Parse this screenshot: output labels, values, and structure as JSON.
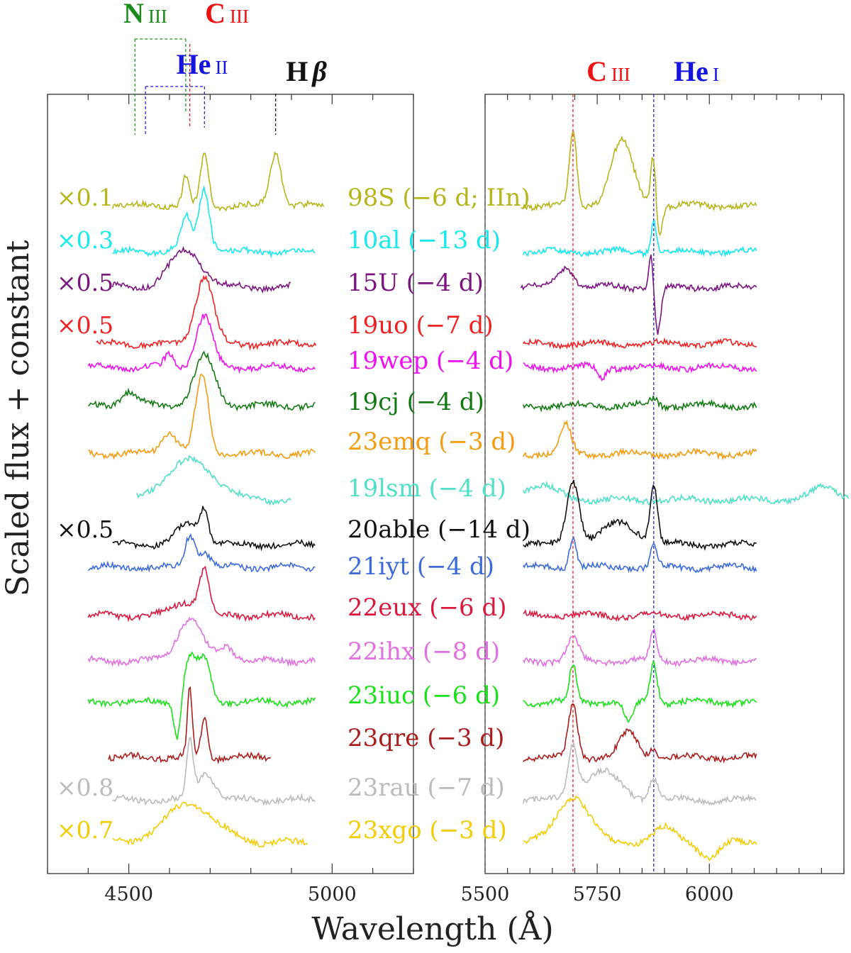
{
  "chart_data": {
    "type": "line",
    "title": "",
    "xlabel": "Wavelength (Å)",
    "ylabel": "Scaled flux + constant",
    "grid": false,
    "panels": [
      {
        "name": "left",
        "xlim": [
          4300,
          5200
        ],
        "xticks": [
          4500,
          5000
        ],
        "xtick_labels": [
          "4500",
          "5000"
        ]
      },
      {
        "name": "right",
        "xlim": [
          5500,
          6300
        ],
        "xticks": [
          5500,
          5750,
          6000
        ],
        "xtick_labels": [
          "5500",
          "5750",
          "6000"
        ]
      }
    ],
    "line_ids": [
      {
        "element": "N",
        "ion": "III",
        "color": "#1a8a1a",
        "wavelengths": [
          4515,
          4640
        ]
      },
      {
        "element": "C",
        "ion": "III",
        "color": "#ee1111",
        "wavelengths": [
          4650,
          5696
        ]
      },
      {
        "element": "He",
        "ion": "II",
        "color": "#1515dd",
        "wavelengths": [
          4541,
          4686
        ]
      },
      {
        "element": "H",
        "ion": "β",
        "color": "#111111",
        "wavelengths": [
          4861
        ]
      },
      {
        "element": "He",
        "ion": "I",
        "color": "#1515dd",
        "wavelengths": [
          5876
        ]
      }
    ],
    "series": [
      {
        "name": "98S",
        "label": "98S (−6 d; IIn)",
        "scale": "×0.1",
        "color": "#b5b51c",
        "phase_days": -6,
        "left_range": [
          4460,
          4980
        ],
        "right_range": [
          5580,
          6105
        ],
        "features": [
          [
            4640,
            40,
            8
          ],
          [
            4686,
            70,
            10
          ],
          [
            4861,
            75,
            14
          ],
          [
            5696,
            105,
            8
          ],
          [
            5805,
            90,
            25
          ],
          [
            5876,
            95,
            6
          ],
          [
            5885,
            -55,
            8
          ]
        ]
      },
      {
        "name": "10al",
        "label": "10al (−13 d)",
        "scale": "×0.3",
        "color": "#18e8ee",
        "phase_days": -13,
        "left_range": [
          4460,
          4960
        ],
        "right_range": [
          5585,
          6105
        ],
        "features": [
          [
            4640,
            35,
            10
          ],
          [
            4686,
            75,
            12
          ],
          [
            4660,
            18,
            35
          ],
          [
            5876,
            45,
            6
          ]
        ]
      },
      {
        "name": "15U",
        "label": "15U (−4 d)",
        "scale": "×0.5",
        "color": "#7a1580",
        "phase_days": -4,
        "left_range": [
          4460,
          4900
        ],
        "right_range": [
          5580,
          6105
        ],
        "features": [
          [
            4640,
            52,
            40
          ],
          [
            5680,
            28,
            18
          ],
          [
            5870,
            52,
            5
          ],
          [
            5885,
            -65,
            7
          ]
        ]
      },
      {
        "name": "19uo",
        "label": "19uo (−7 d)",
        "scale": "×0.5",
        "color": "#ee2222",
        "phase_days": -7,
        "left_range": [
          4420,
          4960
        ],
        "right_range": [
          5585,
          6105
        ],
        "features": [
          [
            4686,
            95,
            22
          ]
        ]
      },
      {
        "name": "19wep",
        "label": "19wep (−4 d)",
        "scale": "",
        "color": "#ee11ee",
        "phase_days": -4,
        "left_range": [
          4400,
          4960
        ],
        "right_range": [
          5585,
          6105
        ],
        "features": [
          [
            4686,
            72,
            20
          ],
          [
            4600,
            18,
            12
          ],
          [
            5760,
            -16,
            8
          ]
        ]
      },
      {
        "name": "19cj",
        "label": "19cj (−4 d)",
        "scale": "",
        "color": "#137a13",
        "phase_days": -4,
        "left_range": [
          4400,
          4960
        ],
        "right_range": [
          5585,
          6105
        ],
        "features": [
          [
            4686,
            70,
            25
          ],
          [
            4500,
            20,
            20
          ],
          [
            5876,
            10,
            8
          ]
        ]
      },
      {
        "name": "23emq",
        "label": "23emq (−3 d)",
        "scale": "",
        "color": "#f39c12",
        "phase_days": -3,
        "left_range": [
          4400,
          4960
        ],
        "right_range": [
          5585,
          6105
        ],
        "features": [
          [
            4680,
            110,
            16
          ],
          [
            4600,
            30,
            20
          ],
          [
            5680,
            40,
            12
          ]
        ]
      },
      {
        "name": "19lsm",
        "label": "19lsm (−4 d)",
        "scale": "",
        "color": "#50e0c8",
        "phase_days": -4,
        "left_range": [
          4520,
          4900
        ],
        "right_range": [
          5585,
          6310
        ],
        "features": [
          [
            4650,
            55,
            60
          ],
          [
            5620,
            20,
            40
          ],
          [
            6260,
            18,
            30
          ]
        ]
      },
      {
        "name": "20able",
        "label": "20able (−14 d)",
        "scale": "×0.5",
        "color": "#111111",
        "phase_days": -14,
        "left_range": [
          4460,
          4960
        ],
        "right_range": [
          5585,
          6105
        ],
        "features": [
          [
            4650,
            30,
            30
          ],
          [
            4686,
            40,
            10
          ],
          [
            5696,
            90,
            14
          ],
          [
            5800,
            30,
            40
          ],
          [
            5876,
            80,
            8
          ]
        ]
      },
      {
        "name": "21iyt",
        "label": "21iyt (−4 d)",
        "scale": "",
        "color": "#3c6ad8",
        "phase_days": -4,
        "left_range": [
          4400,
          4960
        ],
        "right_range": [
          5585,
          6105
        ],
        "features": [
          [
            4650,
            45,
            12
          ],
          [
            4686,
            22,
            15
          ],
          [
            5696,
            42,
            8
          ],
          [
            5876,
            30,
            7
          ]
        ]
      },
      {
        "name": "22eux",
        "label": "22eux (−6 d)",
        "scale": "",
        "color": "#d81a3c",
        "phase_days": -6,
        "left_range": [
          4400,
          4960
        ],
        "right_range": [
          5585,
          6105
        ],
        "features": [
          [
            4686,
            60,
            12
          ],
          [
            4640,
            20,
            30
          ]
        ]
      },
      {
        "name": "22ihx",
        "label": "22ihx (−8 d)",
        "scale": "",
        "color": "#e070e0",
        "phase_days": -8,
        "left_range": [
          4400,
          4960
        ],
        "right_range": [
          5585,
          6105
        ],
        "features": [
          [
            4650,
            60,
            30
          ],
          [
            4740,
            20,
            20
          ],
          [
            5696,
            35,
            12
          ],
          [
            5876,
            40,
            8
          ]
        ]
      },
      {
        "name": "23iuc",
        "label": "23iuc (−6 d)",
        "scale": "",
        "color": "#1be01b",
        "phase_days": -6,
        "left_range": [
          4400,
          4960
        ],
        "right_range": [
          5585,
          6105
        ],
        "features": [
          [
            4650,
            60,
            15
          ],
          [
            4686,
            60,
            15
          ],
          [
            4620,
            -55,
            8
          ],
          [
            5696,
            50,
            8
          ],
          [
            5876,
            55,
            8
          ],
          [
            5820,
            -30,
            10
          ]
        ]
      },
      {
        "name": "23qre",
        "label": "23qre (−3 d)",
        "scale": "",
        "color": "#a81e1e",
        "phase_days": -3,
        "left_range": [
          4450,
          4850
        ],
        "right_range": [
          5585,
          6105
        ],
        "features": [
          [
            4650,
            95,
            6
          ],
          [
            4686,
            55,
            8
          ],
          [
            5696,
            75,
            10
          ],
          [
            5820,
            35,
            20
          ],
          [
            5876,
            15,
            8
          ]
        ]
      },
      {
        "name": "23rau",
        "label": "23rau (−7 d)",
        "scale": "×0.8",
        "color": "#bbbbbb",
        "phase_days": -7,
        "left_range": [
          4460,
          4960
        ],
        "right_range": [
          5585,
          6105
        ],
        "features": [
          [
            4650,
            80,
            8
          ],
          [
            4690,
            40,
            20
          ],
          [
            5696,
            70,
            10
          ],
          [
            5760,
            40,
            40
          ],
          [
            5876,
            30,
            10
          ]
        ]
      },
      {
        "name": "23xgo",
        "label": "23xgo (−3 d)",
        "scale": "×0.7",
        "color": "#f2cc08",
        "phase_days": -3,
        "left_range": [
          4460,
          4940
        ],
        "right_range": [
          5585,
          6105
        ],
        "features": [
          [
            4650,
            55,
            60
          ],
          [
            5696,
            65,
            35
          ],
          [
            5900,
            20,
            25
          ],
          [
            6000,
            -22,
            20
          ]
        ]
      }
    ]
  }
}
